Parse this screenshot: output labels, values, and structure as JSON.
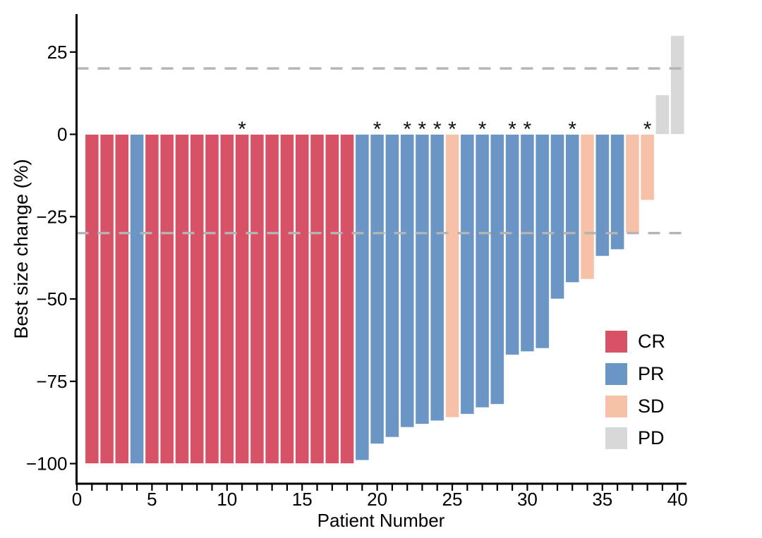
{
  "chart": {
    "y_title": "Best size change (%)",
    "x_title": "Patient Number"
  },
  "legend": {
    "items": [
      {
        "label": "CR",
        "color": "#d85267"
      },
      {
        "label": "PR",
        "color": "#6b95c5"
      },
      {
        "label": "SD",
        "color": "#f6c1a7"
      },
      {
        "label": "PD",
        "color": "#d8d8d8"
      }
    ]
  },
  "chart_data": {
    "type": "bar",
    "title": "",
    "xlabel": "Patient Number",
    "ylabel": "Best size change (%)",
    "xlim": [
      0,
      40.6
    ],
    "ylim": [
      -106,
      36
    ],
    "grid": false,
    "legend_position": "right-middle",
    "y_ticks": [
      25,
      0,
      -25,
      -50,
      -75,
      -100
    ],
    "x_ticks_labeled": [
      0,
      5,
      10,
      15,
      20,
      25,
      30,
      35,
      40
    ],
    "x_minor_tick_every": 1,
    "reference_lines": {
      "values": [
        20,
        -30
      ],
      "style": "dashed",
      "color": "#b4b4b4"
    },
    "marker_symbol": "*",
    "series_colors": {
      "CR": "#d85267",
      "PR": "#6b95c5",
      "SD": "#f6c1a7",
      "PD": "#d8d8d8"
    },
    "patients": [
      {
        "n": 1,
        "value": -100,
        "response": "CR",
        "star": false
      },
      {
        "n": 2,
        "value": -100,
        "response": "CR",
        "star": false
      },
      {
        "n": 3,
        "value": -100,
        "response": "CR",
        "star": false
      },
      {
        "n": 4,
        "value": -100,
        "response": "PR",
        "star": false
      },
      {
        "n": 5,
        "value": -100,
        "response": "CR",
        "star": false
      },
      {
        "n": 6,
        "value": -100,
        "response": "CR",
        "star": false
      },
      {
        "n": 7,
        "value": -100,
        "response": "CR",
        "star": false
      },
      {
        "n": 8,
        "value": -100,
        "response": "CR",
        "star": false
      },
      {
        "n": 9,
        "value": -100,
        "response": "CR",
        "star": false
      },
      {
        "n": 10,
        "value": -100,
        "response": "CR",
        "star": false
      },
      {
        "n": 11,
        "value": -100,
        "response": "CR",
        "star": true
      },
      {
        "n": 12,
        "value": -100,
        "response": "CR",
        "star": false
      },
      {
        "n": 13,
        "value": -100,
        "response": "CR",
        "star": false
      },
      {
        "n": 14,
        "value": -100,
        "response": "CR",
        "star": false
      },
      {
        "n": 15,
        "value": -100,
        "response": "CR",
        "star": false
      },
      {
        "n": 16,
        "value": -100,
        "response": "CR",
        "star": false
      },
      {
        "n": 17,
        "value": -100,
        "response": "CR",
        "star": false
      },
      {
        "n": 18,
        "value": -100,
        "response": "CR",
        "star": false
      },
      {
        "n": 19,
        "value": -99,
        "response": "PR",
        "star": false
      },
      {
        "n": 20,
        "value": -94,
        "response": "PR",
        "star": true
      },
      {
        "n": 21,
        "value": -92,
        "response": "PR",
        "star": false
      },
      {
        "n": 22,
        "value": -89,
        "response": "PR",
        "star": true
      },
      {
        "n": 23,
        "value": -88,
        "response": "PR",
        "star": true
      },
      {
        "n": 24,
        "value": -87,
        "response": "PR",
        "star": true
      },
      {
        "n": 25,
        "value": -86,
        "response": "SD",
        "star": true
      },
      {
        "n": 26,
        "value": -85,
        "response": "PR",
        "star": false
      },
      {
        "n": 27,
        "value": -83,
        "response": "PR",
        "star": true
      },
      {
        "n": 28,
        "value": -82,
        "response": "PR",
        "star": false
      },
      {
        "n": 29,
        "value": -67,
        "response": "PR",
        "star": true
      },
      {
        "n": 30,
        "value": -66,
        "response": "PR",
        "star": true
      },
      {
        "n": 31,
        "value": -65,
        "response": "PR",
        "star": false
      },
      {
        "n": 32,
        "value": -50,
        "response": "PR",
        "star": false
      },
      {
        "n": 33,
        "value": -45,
        "response": "PR",
        "star": true
      },
      {
        "n": 34,
        "value": -44,
        "response": "SD",
        "star": false
      },
      {
        "n": 35,
        "value": -37,
        "response": "PR",
        "star": false
      },
      {
        "n": 36,
        "value": -35,
        "response": "PR",
        "star": false
      },
      {
        "n": 37,
        "value": -30,
        "response": "SD",
        "star": false
      },
      {
        "n": 38,
        "value": -20,
        "response": "SD",
        "star": true
      },
      {
        "n": 39,
        "value": 12,
        "response": "PD",
        "star": false
      },
      {
        "n": 40,
        "value": 30,
        "response": "PD",
        "star": false
      }
    ]
  }
}
